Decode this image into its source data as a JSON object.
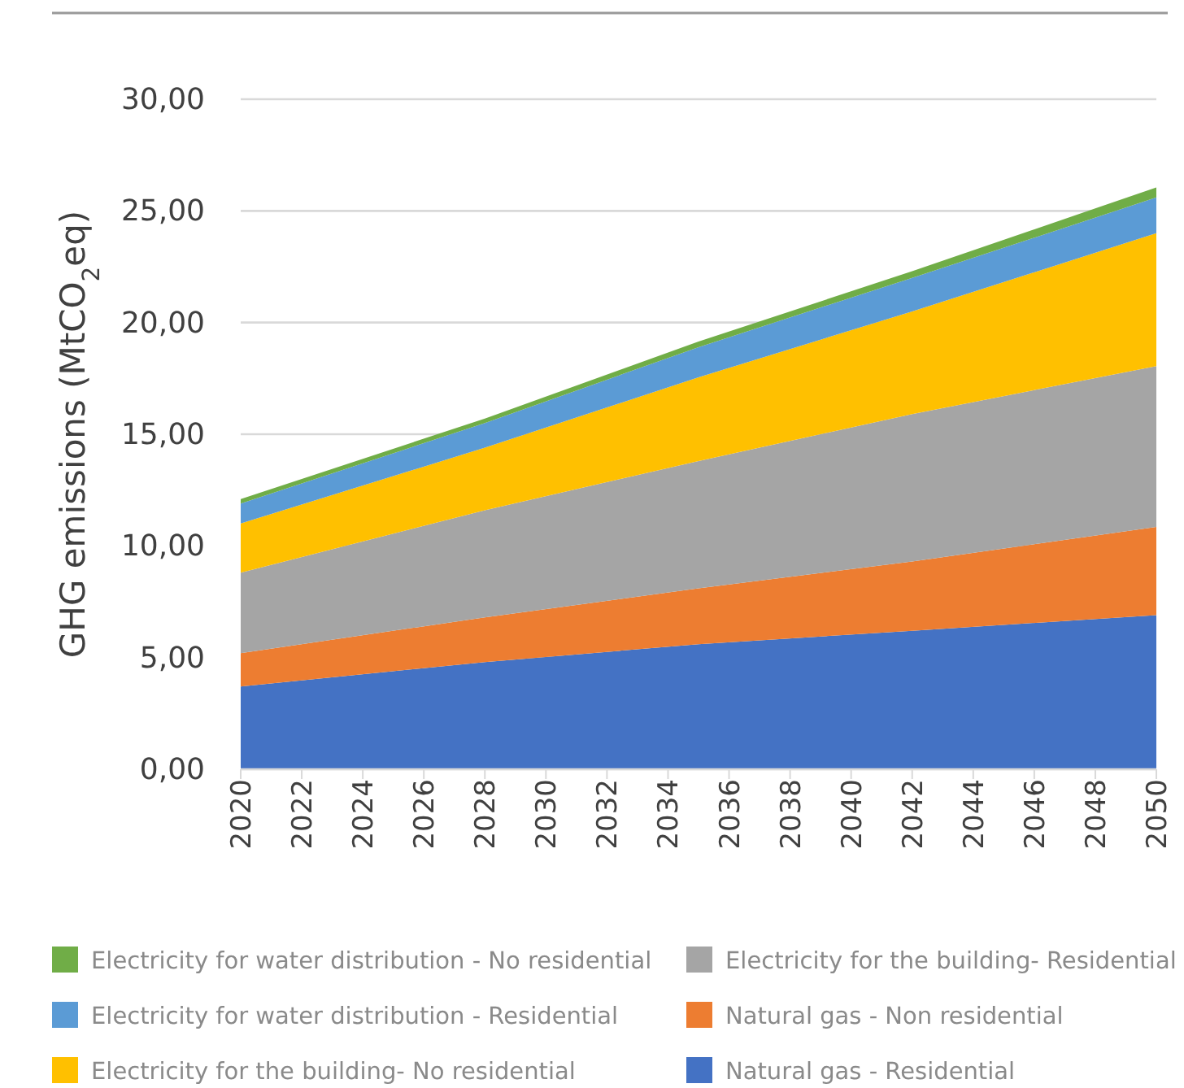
{
  "chart_data": {
    "type": "area",
    "stacked": true,
    "ylabel": "GHG emissions (MtCO$_{2}$eq)",
    "x": [
      2020,
      2028,
      2035,
      2042,
      2050
    ],
    "xlim": [
      2020,
      2050
    ],
    "xticks": [
      2020,
      2022,
      2024,
      2026,
      2028,
      2030,
      2032,
      2034,
      2036,
      2038,
      2040,
      2042,
      2044,
      2046,
      2048,
      2050
    ],
    "ylim": [
      0,
      30
    ],
    "yticks": [
      {
        "value": 0,
        "label": "0,00"
      },
      {
        "value": 5,
        "label": "5,00"
      },
      {
        "value": 10,
        "label": "10,00"
      },
      {
        "value": 15,
        "label": "15,00"
      },
      {
        "value": 20,
        "label": "20,00"
      },
      {
        "value": 25,
        "label": "25,00"
      },
      {
        "value": 30,
        "label": "30,00"
      }
    ],
    "grid": "y",
    "legend": "bottom",
    "series": [
      {
        "name": "Natural gas - Residential",
        "color": "#4472c4",
        "values": [
          3.7,
          4.8,
          5.6,
          6.2,
          6.9
        ]
      },
      {
        "name": "Natural gas - Non residential",
        "color": "#ed7d31",
        "values": [
          1.5,
          2.0,
          2.5,
          3.1,
          3.95
        ]
      },
      {
        "name": "Electricity for the building- Residential",
        "color": "#a5a5a5",
        "values": [
          3.6,
          4.8,
          5.7,
          6.6,
          7.2
        ]
      },
      {
        "name": "Electricity for the building- No residential",
        "color": "#ffc000",
        "values": [
          2.2,
          2.8,
          3.75,
          4.6,
          5.95
        ]
      },
      {
        "name": "Electricity for water distribution - Residential",
        "color": "#5b9bd5",
        "values": [
          0.9,
          1.1,
          1.35,
          1.5,
          1.6
        ]
      },
      {
        "name": "Electricity for water distribution - No residential",
        "color": "#70ad47",
        "values": [
          0.2,
          0.2,
          0.25,
          0.3,
          0.45
        ]
      }
    ]
  }
}
